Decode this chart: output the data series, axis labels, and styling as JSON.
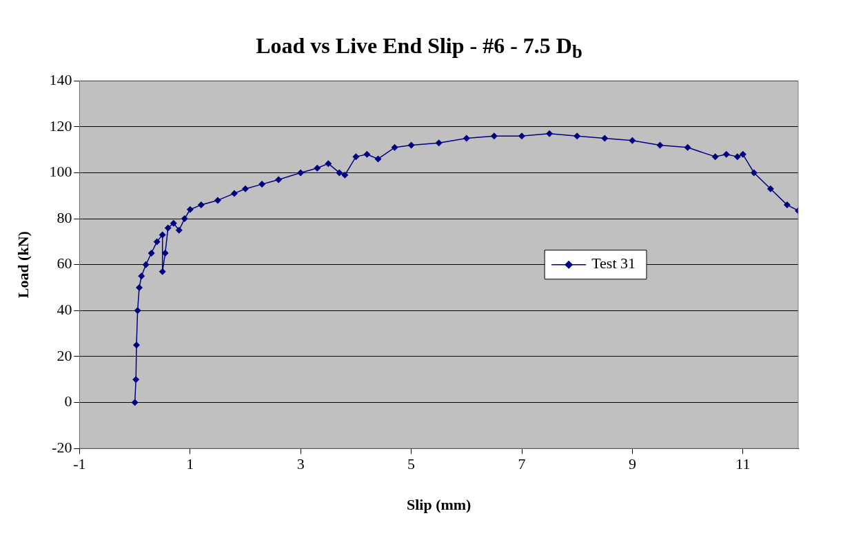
{
  "chart_data": {
    "type": "line",
    "title": "Load vs Live End Slip - #6 - 7.5 D$_{b}$",
    "xlabel": "Slip (mm)",
    "ylabel": "Load (kN)",
    "series": [
      {
        "name": "Test 31",
        "color": "#000080",
        "x": [
          0,
          0.02,
          0.03,
          0.05,
          0.08,
          0.12,
          0.2,
          0.3,
          0.4,
          0.5,
          0.5,
          0.55,
          0.6,
          0.7,
          0.8,
          0.9,
          1,
          1.2,
          1.5,
          1.8,
          2,
          2.3,
          2.6,
          3,
          3.3,
          3.5,
          3.7,
          3.8,
          4,
          4.2,
          4.4,
          4.7,
          5,
          5.5,
          6,
          6.5,
          7,
          7.5,
          8,
          8.5,
          9,
          9.5,
          10,
          10.5,
          10.7,
          10.9,
          11,
          11.2,
          11.5,
          11.8,
          12
        ],
        "values": [
          0,
          10,
          25,
          40,
          50,
          55,
          60,
          65,
          70,
          73,
          57,
          65,
          76,
          78,
          75,
          80,
          84,
          86,
          88,
          91,
          93,
          95,
          97,
          100,
          102,
          104,
          100,
          99,
          107,
          108,
          106,
          111,
          112,
          113,
          115,
          116,
          116,
          117,
          116,
          115,
          114,
          112,
          111,
          107,
          108,
          107,
          108,
          100,
          93,
          86,
          83.5
        ]
      }
    ],
    "xlim": [
      -1,
      12
    ],
    "xticks": [
      -1,
      1,
      3,
      5,
      7,
      9,
      11
    ],
    "ylim": [
      -20,
      140
    ],
    "yticks": [
      -20,
      0,
      20,
      40,
      60,
      80,
      100,
      120,
      140
    ],
    "grid": "y",
    "legend": "right",
    "marker": "diamond",
    "line_style": "solid"
  }
}
